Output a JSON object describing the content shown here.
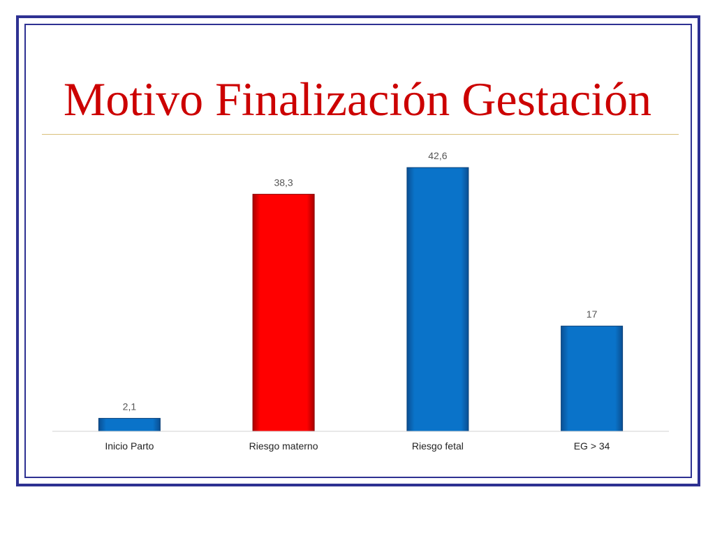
{
  "slide": {
    "title": "Motivo Finalización Gestación"
  },
  "colors": {
    "frame": "#2e3192",
    "title": "#cc0000",
    "title_rule": "#d9bf7a",
    "bar_default": "#0a73c9",
    "bar_highlight": "#ff0000"
  },
  "chart_data": {
    "type": "bar",
    "title": "",
    "xlabel": "",
    "ylabel": "",
    "ylim": [
      0,
      50
    ],
    "grid": false,
    "legend": "none",
    "categories": [
      "Inicio Parto",
      "Riesgo materno",
      "Riesgo fetal",
      "EG > 34"
    ],
    "values": [
      2.1,
      38.3,
      42.6,
      17
    ],
    "data_labels": [
      "2,1",
      "38,3",
      "42,6",
      "17"
    ],
    "bar_colors": [
      "#0a73c9",
      "#ff0000",
      "#0a73c9",
      "#0a73c9"
    ]
  }
}
